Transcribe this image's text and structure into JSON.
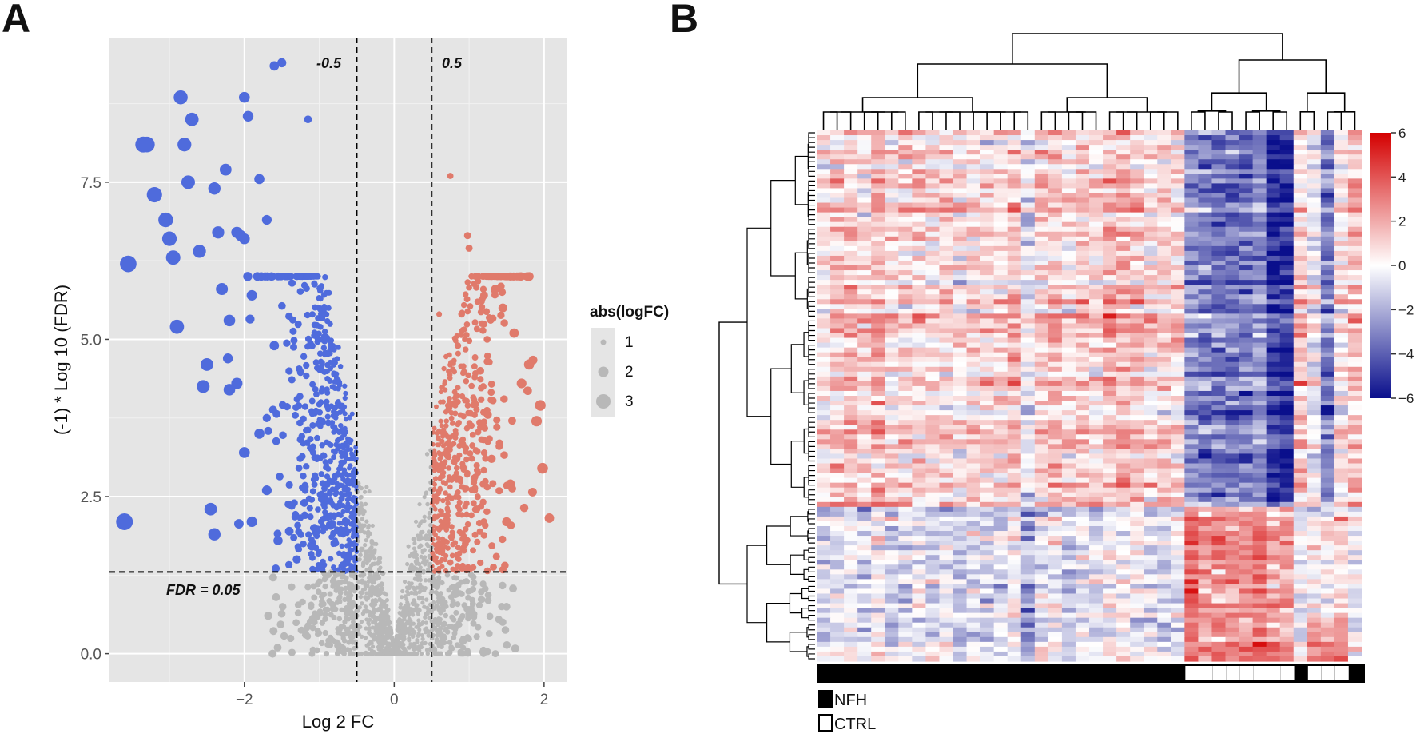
{
  "panels": {
    "a_label": "A",
    "b_label": "B"
  },
  "colors": {
    "down": "#4f6bdc",
    "up": "#e07a6b",
    "ns": "#b8b8b8",
    "panel_bg": "#e5e5e5",
    "heat_low": "#0a0f8c",
    "heat_mid": "#ffffff",
    "heat_high": "#d40000"
  },
  "chart_data": [
    {
      "type": "scatter",
      "title": "",
      "xlabel": "Log 2 FC",
      "ylabel": "(-1) * Log 10 (FDR)",
      "xlim": [
        -3.8,
        2.3
      ],
      "ylim": [
        -0.45,
        9.8
      ],
      "xticks": [
        -2,
        0,
        2
      ],
      "xtick_labels": [
        "−2",
        "0",
        "2"
      ],
      "yticks": [
        0.0,
        2.5,
        5.0,
        7.5
      ],
      "ytick_labels": [
        "0.0",
        "2.5",
        "5.0",
        "7.5"
      ],
      "grid": true,
      "thresholds": {
        "logfc": [
          -0.5,
          0.5
        ],
        "fdr_line_y": 1.3
      },
      "annotations": {
        "left_threshold": "-0.5",
        "right_threshold": "0.5",
        "fdr": "FDR = 0.05"
      },
      "legend": {
        "title": "abs(logFC)",
        "items": [
          "1",
          "2",
          "3"
        ],
        "position": "right"
      },
      "series": [
        {
          "name": "down",
          "points": [
            [
              -3.55,
              6.2
            ],
            [
              -3.6,
              2.1
            ],
            [
              -3.35,
              8.1
            ],
            [
              -3.3,
              8.1
            ],
            [
              -3.2,
              7.3
            ],
            [
              -3.05,
              6.9
            ],
            [
              -3.0,
              6.6
            ],
            [
              -2.95,
              6.3
            ],
            [
              -2.9,
              5.2
            ],
            [
              -2.85,
              8.85
            ],
            [
              -2.8,
              8.1
            ],
            [
              -2.75,
              7.5
            ],
            [
              -2.7,
              8.5
            ],
            [
              -2.6,
              6.4
            ],
            [
              -2.55,
              4.25
            ],
            [
              -2.5,
              4.6
            ],
            [
              -2.45,
              2.3
            ],
            [
              -2.4,
              7.4
            ],
            [
              -2.35,
              6.7
            ],
            [
              -2.3,
              5.8
            ],
            [
              -2.2,
              5.3
            ],
            [
              -2.25,
              7.7
            ],
            [
              -2.1,
              6.7
            ],
            [
              -2.0,
              8.85
            ],
            [
              -1.95,
              8.55
            ],
            [
              -1.6,
              9.35
            ],
            [
              -1.5,
              9.4
            ],
            [
              -1.15,
              8.5
            ],
            [
              -2.05,
              6.65
            ],
            [
              -1.8,
              7.55
            ],
            [
              -2.0,
              6.6
            ],
            [
              -1.7,
              6.9
            ],
            [
              -1.9,
              5.7
            ],
            [
              -2.1,
              4.3
            ],
            [
              -1.6,
              4.9
            ],
            [
              -1.8,
              3.5
            ],
            [
              -1.7,
              2.6
            ],
            [
              -1.55,
              1.8
            ],
            [
              -1.4,
              1.95
            ],
            [
              -1.2,
              2.4
            ],
            [
              -2.0,
              3.2
            ],
            [
              -1.3,
              1.5
            ],
            [
              -1.1,
              1.7
            ],
            [
              -1.9,
              2.1
            ],
            [
              -2.2,
              4.2
            ],
            [
              -2.4,
              1.9
            ]
          ]
        },
        {
          "name": "up",
          "points": [
            [
              0.75,
              7.6
            ],
            [
              0.98,
              6.65
            ],
            [
              1.0,
              6.45
            ],
            [
              0.9,
              5.4
            ],
            [
              1.2,
              5.7
            ],
            [
              1.35,
              5.8
            ],
            [
              1.45,
              5.5
            ],
            [
              1.6,
              5.1
            ],
            [
              1.8,
              4.6
            ],
            [
              1.7,
              4.3
            ],
            [
              1.95,
              3.95
            ],
            [
              1.9,
              3.7
            ],
            [
              1.98,
              2.95
            ],
            [
              1.55,
              2.7
            ],
            [
              1.5,
              2.1
            ],
            [
              0.6,
              5.4
            ],
            [
              1.15,
              4.5
            ],
            [
              1.3,
              3.1
            ],
            [
              1.1,
              2.3
            ],
            [
              0.95,
              1.75
            ],
            [
              0.75,
              1.45
            ],
            [
              1.25,
              3.8
            ],
            [
              0.85,
              4.9
            ]
          ]
        }
      ]
    },
    {
      "type": "heatmap",
      "title": "",
      "colorbar": {
        "min": -6,
        "max": 6,
        "ticks": [
          6,
          4,
          2,
          0,
          -2,
          -4,
          -6
        ],
        "tick_labels": [
          "6",
          "4",
          "2",
          "0",
          "−2",
          "−4",
          "−6"
        ]
      },
      "n_columns": 40,
      "group_sequence": [
        "NFH",
        "NFH",
        "NFH",
        "NFH",
        "NFH",
        "NFH",
        "NFH",
        "NFH",
        "NFH",
        "NFH",
        "NFH",
        "NFH",
        "NFH",
        "NFH",
        "NFH",
        "NFH",
        "NFH",
        "NFH",
        "NFH",
        "NFH",
        "NFH",
        "NFH",
        "NFH",
        "NFH",
        "NFH",
        "NFH",
        "NFH",
        "CTRL",
        "CTRL",
        "CTRL",
        "CTRL",
        "CTRL",
        "CTRL",
        "CTRL",
        "CTRL",
        "NFH",
        "CTRL",
        "CTRL",
        "CTRL",
        "NFH"
      ],
      "legend": [
        {
          "label": "NFH",
          "fill": "#000000"
        },
        {
          "label": "CTRL",
          "fill": "#ffffff"
        }
      ]
    }
  ]
}
